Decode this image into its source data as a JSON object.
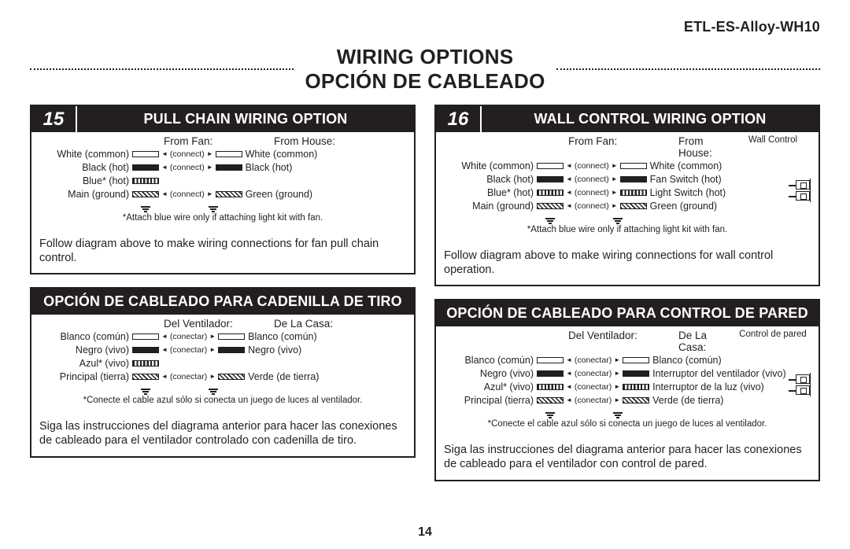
{
  "model": "ETL-ES-Alloy-WH10",
  "title_en": "WIRING OPTIONS",
  "title_es": "OPCIÓN DE CABLEADO",
  "page_number": "14",
  "left": {
    "step": "15",
    "en": {
      "title": "PULL CHAIN WIRING OPTION",
      "from_fan": "From Fan:",
      "from_house": "From House:",
      "wires": [
        {
          "l": "White (common)",
          "style": "hollow",
          "r": "White (common)",
          "rstyle": "hollow",
          "conn": "(connect)"
        },
        {
          "l": "Black (hot)",
          "style": "solid",
          "r": "Black (hot)",
          "rstyle": "solid",
          "conn": "(connect)"
        },
        {
          "l": "Blue* (hot)",
          "style": "vstripes",
          "r": "",
          "rstyle": "",
          "conn": ""
        },
        {
          "l": "Main (ground)",
          "style": "hatched",
          "r": "Green (ground)",
          "rstyle": "hatched",
          "conn": "(connect)"
        }
      ],
      "note": "*Attach blue wire only if attaching light kit with fan.",
      "follow": "Follow diagram above to make wiring connections for fan pull chain control."
    },
    "es": {
      "title": "OPCIÓN DE CABLEADO PARA CADENILLA DE TIRO",
      "from_fan": "Del Ventilador:",
      "from_house": "De La Casa:",
      "wires": [
        {
          "l": "Blanco (común)",
          "style": "hollow",
          "r": "Blanco (común)",
          "rstyle": "hollow",
          "conn": "(conectar)"
        },
        {
          "l": "Negro (vivo)",
          "style": "solid",
          "r": "Negro (vivo)",
          "rstyle": "solid",
          "conn": "(conectar)"
        },
        {
          "l": "Azul* (vivo)",
          "style": "vstripes",
          "r": "",
          "rstyle": "",
          "conn": ""
        },
        {
          "l": "Principal (tierra)",
          "style": "hatched",
          "r": "Verde (de tierra)",
          "rstyle": "hatched",
          "conn": "(conectar)"
        }
      ],
      "note": "*Conecte el cable azul sólo si conecta un juego de luces al ventilador.",
      "follow": "Siga las instrucciones del diagrama anterior para hacer las conexiones de cableado para el ventilador controlado con cadenilla de tiro."
    }
  },
  "right": {
    "step": "16",
    "wall_label_en": "Wall Control",
    "wall_label_es": "Control de pared",
    "en": {
      "title": "WALL CONTROL WIRING OPTION",
      "from_fan": "From Fan:",
      "from_house": "From House:",
      "wires": [
        {
          "l": "White (common)",
          "style": "hollow",
          "r": "White (common)",
          "rstyle": "hollow",
          "conn": "(connect)"
        },
        {
          "l": "Black (hot)",
          "style": "solid",
          "r": "Fan Switch (hot)",
          "rstyle": "solid",
          "conn": "(connect)"
        },
        {
          "l": "Blue* (hot)",
          "style": "vstripes",
          "r": "Light Switch (hot)",
          "rstyle": "vstripes",
          "conn": "(connect)"
        },
        {
          "l": "Main (ground)",
          "style": "hatched",
          "r": "Green (ground)",
          "rstyle": "hatched",
          "conn": "(connect)"
        }
      ],
      "note": "*Attach blue wire only if attaching light kit with fan.",
      "follow": "Follow diagram above to make wiring connections for wall control operation."
    },
    "es": {
      "title": "OPCIÓN DE CABLEADO PARA CONTROL DE PARED",
      "from_fan": "Del Ventilador:",
      "from_house": "De La Casa:",
      "wires": [
        {
          "l": "Blanco (común)",
          "style": "hollow",
          "r": "Blanco (común)",
          "rstyle": "hollow",
          "conn": "(conectar)"
        },
        {
          "l": "Negro (vivo)",
          "style": "solid",
          "r": "Interruptor del ventilador (vivo)",
          "rstyle": "solid",
          "conn": "(conectar)"
        },
        {
          "l": "Azul* (vivo)",
          "style": "vstripes",
          "r": "Interruptor de la luz (vivo)",
          "rstyle": "vstripes",
          "conn": "(conectar)"
        },
        {
          "l": "Principal (tierra)",
          "style": "hatched",
          "r": "Verde (de tierra)",
          "rstyle": "hatched",
          "conn": "(conectar)"
        }
      ],
      "note": "*Conecte el cable azul sólo si conecta un juego de luces al ventilador.",
      "follow": "Siga las instrucciones del diagrama anterior para hacer las conexiones de cableado para el ventilador con control de pared."
    }
  }
}
